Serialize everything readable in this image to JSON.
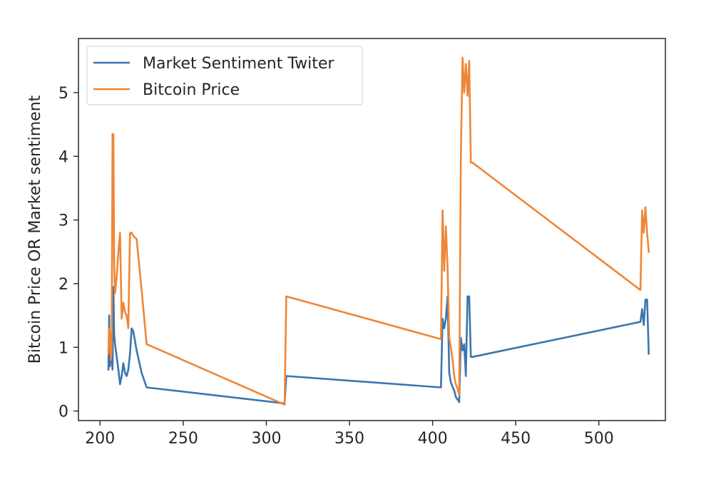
{
  "chart_data": {
    "type": "line",
    "title": "",
    "xlabel": "",
    "ylabel": "Bitcoin Price OR Market sentiment",
    "xlim": [
      187,
      540
    ],
    "ylim": [
      -0.15,
      5.85
    ],
    "xticks": [
      200,
      250,
      300,
      350,
      400,
      450,
      500
    ],
    "yticks": [
      0,
      1,
      2,
      3,
      4,
      5
    ],
    "grid": false,
    "legend": "top-left",
    "series": [
      {
        "name": "Market Sentiment Twiter",
        "color": "#3b75af",
        "x": [
          205,
          205.5,
          206,
          206.5,
          207,
          207.5,
          208,
          208.5,
          209,
          210,
          211,
          212,
          213,
          214,
          215,
          216,
          217,
          218,
          219,
          220,
          222,
          225,
          228,
          311,
          312,
          405,
          406,
          407,
          408,
          409,
          410,
          411,
          412,
          413,
          414,
          415,
          416,
          417,
          418,
          419,
          420,
          421,
          422,
          423,
          424,
          525,
          526,
          527,
          528,
          529,
          530
        ],
        "y": [
          0.65,
          1.5,
          0.7,
          0.95,
          0.9,
          0.65,
          1.95,
          1.2,
          1.05,
          0.85,
          0.65,
          0.42,
          0.55,
          0.75,
          0.6,
          0.55,
          0.65,
          0.9,
          1.3,
          1.25,
          0.95,
          0.6,
          0.37,
          0.12,
          0.55,
          0.37,
          1.45,
          1.3,
          1.45,
          1.8,
          0.6,
          0.45,
          0.38,
          0.32,
          0.22,
          0.18,
          0.14,
          1.15,
          0.95,
          1.05,
          0.55,
          1.8,
          1.8,
          0.85,
          0.85,
          1.4,
          1.6,
          1.35,
          1.75,
          1.75,
          0.9
        ]
      },
      {
        "name": "Bitcoin Price",
        "color": "#ef8636",
        "x": [
          205,
          205.5,
          206,
          206.5,
          207,
          207.5,
          208,
          208.5,
          209,
          210,
          211,
          212,
          213,
          214,
          215,
          216,
          217,
          218,
          219,
          220,
          222,
          225,
          228,
          311,
          312,
          405,
          406,
          407,
          408,
          409,
          410,
          411,
          412,
          413,
          414,
          415,
          416,
          417,
          418,
          419,
          420,
          421,
          422,
          423,
          424,
          525,
          526,
          527,
          528,
          529,
          530
        ],
        "y": [
          0.9,
          1.3,
          1.2,
          0.8,
          1.0,
          4.35,
          4.35,
          2.3,
          1.85,
          2.1,
          2.5,
          2.8,
          1.45,
          1.7,
          1.55,
          1.5,
          1.3,
          2.8,
          2.8,
          2.75,
          2.7,
          1.9,
          1.05,
          0.1,
          1.8,
          1.13,
          3.15,
          2.2,
          2.9,
          2.25,
          1.15,
          1.0,
          0.8,
          0.55,
          0.42,
          0.35,
          0.25,
          4.0,
          5.55,
          5.0,
          5.45,
          4.95,
          5.5,
          3.9,
          3.9,
          1.9,
          3.15,
          2.8,
          3.2,
          2.8,
          2.5
        ]
      }
    ]
  }
}
